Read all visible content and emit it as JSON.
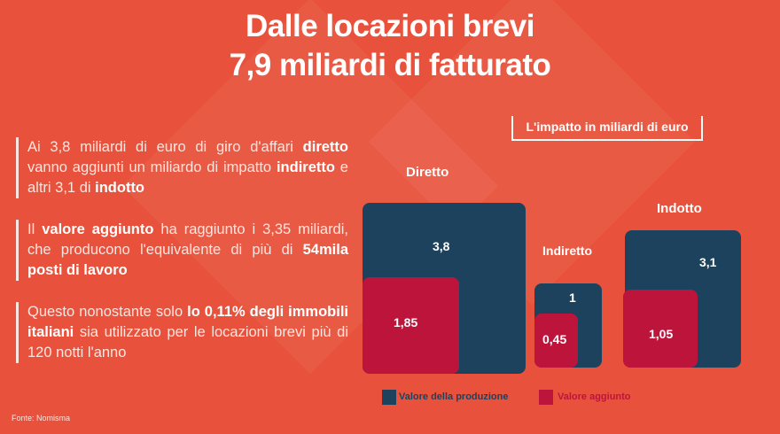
{
  "title": [
    "Dalle locazioni brevi",
    "7,9 miliardi di fatturato"
  ],
  "paragraphs": [
    [
      {
        "t": "Ai 3,8 miliardi di euro di giro d'affari ",
        "b": false
      },
      {
        "t": "diretto",
        "b": true
      },
      {
        "t": " vanno aggiunti un miliardo di impatto ",
        "b": false
      },
      {
        "t": "indiretto",
        "b": true
      },
      {
        "t": " e altri 3,1 di ",
        "b": false
      },
      {
        "t": "indotto",
        "b": true
      }
    ],
    [
      {
        "t": "Il ",
        "b": false
      },
      {
        "t": "valore aggiunto",
        "b": true
      },
      {
        "t": " ha raggiunto i 3,35 miliardi, che producono l'equivalente di più di ",
        "b": false
      },
      {
        "t": "54mila posti di lavoro",
        "b": true
      }
    ],
    [
      {
        "t": "Questo nonostante solo ",
        "b": false
      },
      {
        "t": "lo 0,11% degli immobili italiani",
        "b": true
      },
      {
        "t": " sia utilizzato per le locazioni brevi più di 120 notti l'anno",
        "b": false
      }
    ]
  ],
  "source": "Fonte: Nomisma",
  "chart_data": {
    "type": "nested-square",
    "title": "L'impatto in miliardi di euro",
    "categories": [
      "Diretto",
      "Indiretto",
      "Indotto"
    ],
    "series": [
      {
        "name": "Valore della produzione",
        "values": [
          3.8,
          1,
          3.1
        ],
        "labels": [
          "3,8",
          "1",
          "3,1"
        ],
        "color": "#1d425e"
      },
      {
        "name": "Valore aggiunto",
        "values": [
          1.85,
          0.45,
          1.05
        ],
        "labels": [
          "1,85",
          "0,45",
          "1,05"
        ],
        "color": "#bd143c"
      }
    ],
    "legend": "bottom"
  }
}
